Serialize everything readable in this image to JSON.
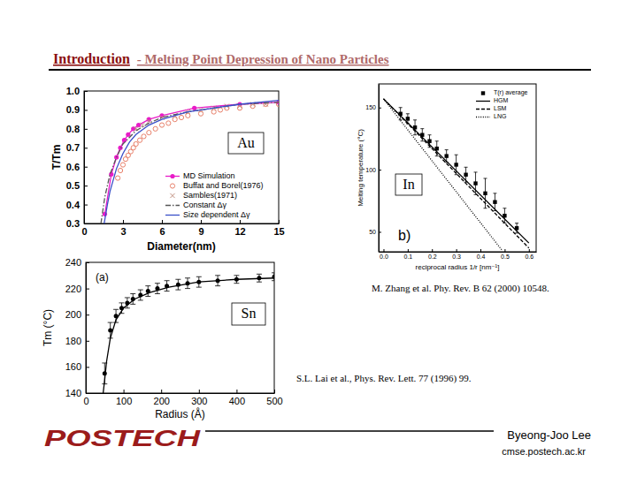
{
  "header": {
    "title": "Introduction",
    "subtitle": "- Melting Point Depression of Nano Particles"
  },
  "references": [
    "M. Zhang et al. Phy. Rev. B 62 (2000) 10548.",
    "S.L. Lai et al., Phys. Rev. Lett. 77 (1996) 99."
  ],
  "footer": {
    "logo": "POSTECH",
    "author": "Byeong-Joo Lee",
    "site": "cmse.postech.ac.kr"
  },
  "chart_data": [
    {
      "type": "scatter",
      "title": "Au",
      "x_label": "Diameter(nm)",
      "y_label": "T/Tm",
      "xlim": [
        0,
        15
      ],
      "ylim": [
        0.3,
        1.0
      ],
      "xticks": [
        0,
        3,
        6,
        9,
        12,
        15
      ],
      "yticks": [
        0.3,
        0.4,
        0.5,
        0.6,
        0.7,
        0.8,
        0.9,
        {
          "value": 1.0,
          "label": "1.0"
        }
      ],
      "legend": "lower right",
      "series": [
        {
          "name": "MD Simulation",
          "type": "line",
          "marker": "circle",
          "line_style": "solid",
          "color": "#e81cc8",
          "x": [
            1.6,
            2.1,
            2.5,
            2.8,
            3.1,
            3.4,
            3.8,
            4.2,
            5.0,
            6.0,
            8.5,
            12.0,
            15.0
          ],
          "values": [
            0.35,
            0.56,
            0.65,
            0.7,
            0.74,
            0.77,
            0.8,
            0.82,
            0.85,
            0.87,
            0.91,
            0.93,
            0.94
          ]
        },
        {
          "name": "Buffat and Borel(1976)",
          "type": "scatter",
          "marker": "open-circle",
          "color": "#e8806a",
          "x": [
            2.6,
            2.8,
            3.0,
            3.2,
            3.4,
            3.6,
            3.8,
            4.0,
            4.3,
            4.6,
            5.0,
            5.5,
            6.0,
            6.5,
            7.0,
            7.5,
            8.0,
            9.0,
            10.0,
            10.5,
            11.0,
            12.0,
            13.0,
            14.0,
            15.0
          ],
          "values": [
            0.54,
            0.58,
            0.61,
            0.64,
            0.66,
            0.68,
            0.7,
            0.72,
            0.74,
            0.76,
            0.78,
            0.8,
            0.82,
            0.83,
            0.85,
            0.86,
            0.87,
            0.88,
            0.89,
            0.9,
            0.91,
            0.91,
            0.92,
            0.93,
            0.93
          ]
        },
        {
          "name": "Sambles(1971)",
          "type": "scatter",
          "marker": "x",
          "color": "#c09080",
          "x": [
            4.0,
            4.5,
            5.0,
            6.0,
            7.0,
            8.0,
            9.0,
            10.0,
            11.0,
            12.0,
            13.0,
            14.0
          ],
          "values": [
            0.8,
            0.82,
            0.84,
            0.86,
            0.87,
            0.89,
            0.9,
            0.91,
            0.92,
            0.92,
            0.93,
            0.93
          ]
        },
        {
          "name": "Constant Δγ",
          "type": "line",
          "line_style": "dash-dot",
          "color": "#555555",
          "x": [
            1.3,
            1.6,
            2.0,
            2.5,
            3.0,
            4.0,
            5.0,
            6.0,
            8.0,
            10.0,
            12.0,
            15.0
          ],
          "values": [
            0.3,
            0.44,
            0.56,
            0.65,
            0.72,
            0.79,
            0.83,
            0.86,
            0.89,
            0.91,
            0.93,
            0.94
          ]
        },
        {
          "name": "Size dependent Δγ",
          "type": "line",
          "line_style": "solid",
          "color": "#3a4fc8",
          "x": [
            1.55,
            1.8,
            2.0,
            2.5,
            3.0,
            3.5,
            4.0,
            5.0,
            6.0,
            8.0,
            10.0,
            12.0,
            15.0
          ],
          "values": [
            0.3,
            0.4,
            0.47,
            0.59,
            0.67,
            0.73,
            0.77,
            0.82,
            0.85,
            0.89,
            0.91,
            0.93,
            0.95
          ]
        }
      ]
    },
    {
      "type": "scatter",
      "title": "In",
      "x_label": "reciprocal radius 1/r [nm⁻¹]",
      "y_label": "Melting temperature (°C)",
      "annotations": [
        "b)"
      ],
      "xlim": [
        -0.02,
        0.63
      ],
      "ylim": [
        34,
        169
      ],
      "xticks": [
        {
          "value": 0,
          "label": "0.0"
        },
        0.1,
        0.2,
        0.3,
        0.4,
        0.5,
        0.6
      ],
      "yticks": [
        50,
        100,
        150
      ],
      "legend": "upper right",
      "series": [
        {
          "name": "T(r) average",
          "type": "scatter",
          "marker": "square",
          "color": "#000000",
          "x": [
            0.07,
            0.1,
            0.13,
            0.16,
            0.19,
            0.22,
            0.26,
            0.3,
            0.34,
            0.38,
            0.42,
            0.46,
            0.5,
            0.55
          ],
          "values": [
            145,
            141,
            134,
            128,
            123,
            117,
            111,
            104,
            96,
            89,
            81,
            74,
            63,
            53
          ],
          "errors": [
            5,
            4,
            6,
            5,
            5,
            6,
            5,
            8,
            6,
            9,
            12,
            7,
            6,
            4
          ]
        },
        {
          "name": "HGM",
          "type": "line",
          "line_style": "solid",
          "color": "#000000",
          "x": [
            0,
            0.6
          ],
          "values": [
            157,
            41
          ]
        },
        {
          "name": "LSM",
          "type": "line",
          "line_style": "dashed",
          "color": "#000000",
          "x": [
            0,
            0.6
          ],
          "values": [
            157,
            37
          ]
        },
        {
          "name": "LNG",
          "type": "line",
          "line_style": "dotted",
          "color": "#000000",
          "x": [
            0,
            0.49
          ],
          "values": [
            157,
            35
          ]
        }
      ]
    },
    {
      "type": "scatter",
      "title": "Sn",
      "x_label": "Radius (Å)",
      "y_label": "Tm (°C)",
      "annotations": [
        "(a)"
      ],
      "xlim": [
        0,
        500
      ],
      "ylim": [
        140,
        240
      ],
      "xticks": [
        0,
        100,
        200,
        300,
        400,
        500
      ],
      "yticks": [
        140,
        160,
        180,
        200,
        220,
        240
      ],
      "series": [
        {
          "type": "line",
          "line_style": "solid",
          "color": "#000000",
          "x": [
            46,
            50,
            55,
            65,
            80,
            100,
            130,
            170,
            220,
            300,
            400,
            500
          ],
          "values": [
            140,
            150,
            164,
            182,
            196,
            205,
            212,
            217,
            221,
            225,
            227,
            228
          ]
        },
        {
          "type": "scatter",
          "marker": "circle",
          "color": "#000000",
          "x": [
            50,
            65,
            80,
            95,
            110,
            125,
            145,
            165,
            190,
            215,
            245,
            270,
            300,
            350,
            400,
            460,
            500
          ],
          "values": [
            155,
            188,
            199,
            205,
            209,
            212,
            215,
            218,
            220,
            222,
            223,
            224,
            225,
            226,
            227,
            228,
            229
          ],
          "errors": [
            8,
            6,
            5,
            4,
            4,
            4,
            4,
            4,
            4,
            4,
            4,
            4,
            4,
            4,
            3,
            3,
            3
          ]
        }
      ]
    }
  ]
}
